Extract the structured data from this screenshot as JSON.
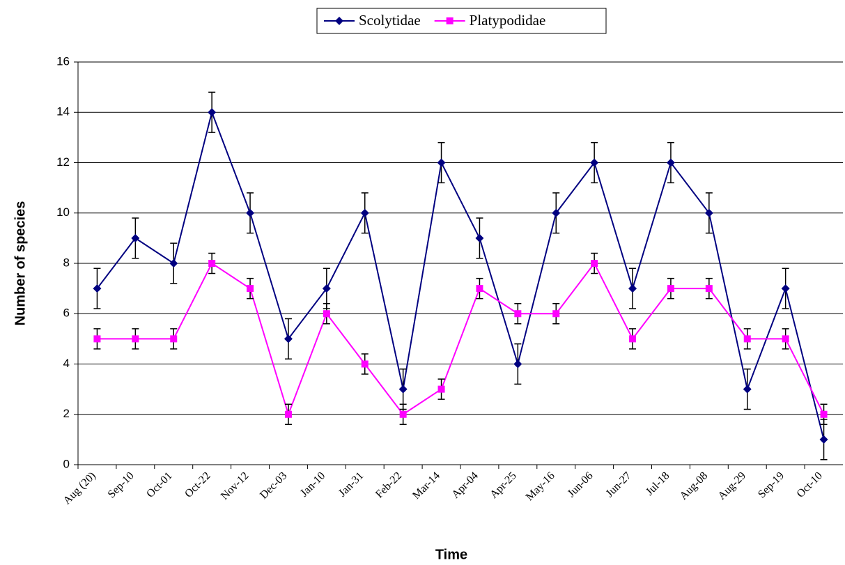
{
  "chart_data": {
    "type": "line",
    "x_label": "Time",
    "y_label": "Number of species",
    "categories": [
      "Aug (20)",
      "Sep-10",
      "Oct-01",
      "Oct-22",
      "Nov-12",
      "Dec-03",
      "Jan-10",
      "Jan-31",
      "Feb-22",
      "Mar-14",
      "Apr-04",
      "Apr-25",
      "May-16",
      "Jun-06",
      "Jun-27",
      "Jul-18",
      "Aug-08",
      "Aug-29",
      "Sep-19",
      "Oct-10"
    ],
    "series": [
      {
        "name": "Scolytidae",
        "color": "#000080",
        "marker": "diamond",
        "values": [
          7,
          9,
          8,
          14,
          10,
          5,
          7,
          10,
          3,
          12,
          9,
          4,
          10,
          12,
          7,
          12,
          10,
          3,
          7,
          1
        ],
        "errors": [
          0.8,
          0.8,
          0.8,
          0.8,
          0.8,
          0.8,
          0.8,
          0.8,
          0.8,
          0.8,
          0.8,
          0.8,
          0.8,
          0.8,
          0.8,
          0.8,
          0.8,
          0.8,
          0.8,
          0.8
        ]
      },
      {
        "name": "Platypodidae",
        "color": "#ff00ff",
        "marker": "square",
        "values": [
          5,
          5,
          5,
          8,
          7,
          2,
          6,
          4,
          2,
          3,
          7,
          6,
          6,
          8,
          5,
          7,
          7,
          5,
          5,
          2
        ],
        "errors": [
          0.4,
          0.4,
          0.4,
          0.4,
          0.4,
          0.4,
          0.4,
          0.4,
          0.4,
          0.4,
          0.4,
          0.4,
          0.4,
          0.4,
          0.4,
          0.4,
          0.4,
          0.4,
          0.4,
          0.4
        ]
      }
    ],
    "ylim": [
      0,
      16
    ],
    "yticks": [
      0,
      2,
      4,
      6,
      8,
      10,
      12,
      14,
      16
    ],
    "grid": true,
    "legend": "top"
  }
}
